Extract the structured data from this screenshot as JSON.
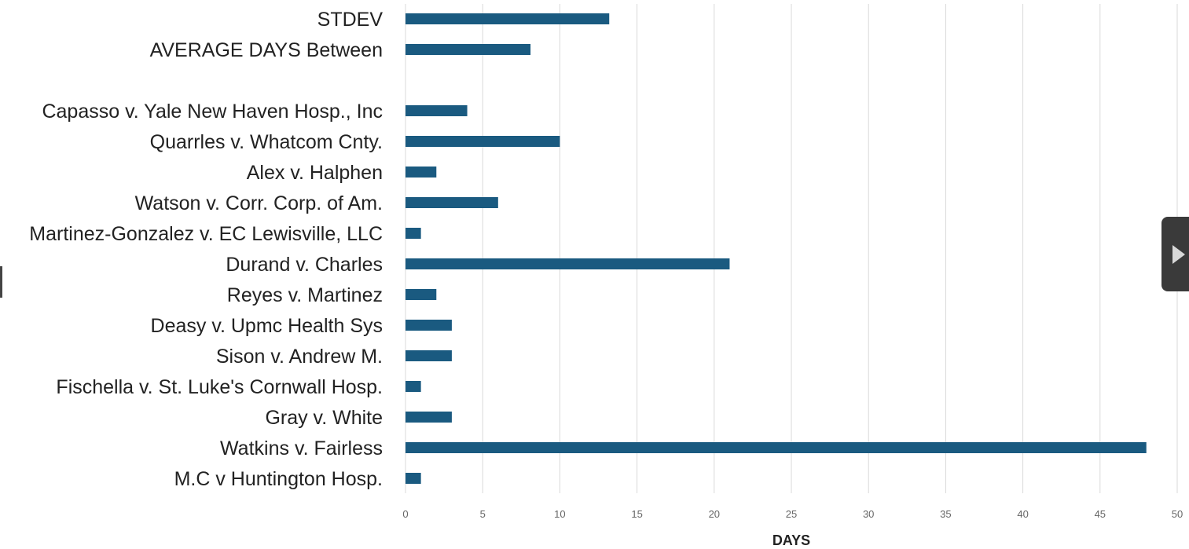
{
  "chart_data": {
    "type": "bar",
    "orientation": "horizontal",
    "categories": [
      "STDEV",
      "AVERAGE DAYS Between",
      "",
      "Capasso v. Yale New Haven Hosp., Inc",
      "Quarrles v. Whatcom Cnty.",
      "Alex v. Halphen",
      "Watson v. Corr. Corp. of Am.",
      "Martinez-Gonzalez v. EC Lewisville, LLC",
      "Durand v. Charles",
      "Reyes v. Martinez",
      "Deasy v. Upmc Health Sys",
      "Sison v. Andrew M.",
      "Fischella v. St. Luke's Cornwall Hosp.",
      "Gray v. White",
      "Watkins v. Fairless",
      "M.C v Huntington Hosp."
    ],
    "values": [
      13.2,
      8.1,
      null,
      4,
      10,
      2,
      6,
      1,
      21,
      2,
      3,
      3,
      1,
      3,
      48,
      1
    ],
    "xlabel": "DAYS",
    "ylabel": "",
    "xlim": [
      0,
      50
    ],
    "xticks": [
      0,
      5,
      10,
      15,
      20,
      25,
      30,
      35,
      40,
      45,
      50
    ],
    "grid": "vertical",
    "legend": "none",
    "bar_color": "#1a5a80"
  },
  "colors": {
    "gridline": "#d9d9d9",
    "side_tab": "#3a3a3a",
    "side_tab_icon": "#d8d8d8"
  },
  "side_tab": {
    "icon": "play-icon"
  }
}
